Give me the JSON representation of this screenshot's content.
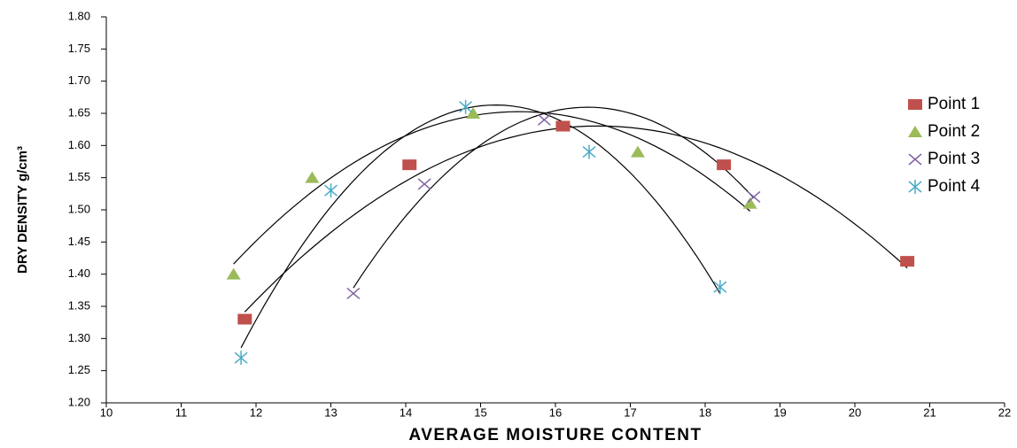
{
  "chart_data": {
    "type": "scatter",
    "trendline": "polynomial",
    "legend": "right",
    "xlabel": "AVERAGE MOISTURE CONTENT",
    "ylabel": "DRY DENSITY g/cm³",
    "xlim": [
      10,
      22
    ],
    "xticks": [
      10,
      11,
      12,
      13,
      14,
      15,
      16,
      17,
      18,
      19,
      20,
      21,
      22
    ],
    "ylim": [
      1.2,
      1.8
    ],
    "yticks": [
      {
        "value": 1.2,
        "label": "1.20"
      },
      1.25,
      {
        "value": 1.3,
        "label": "1.30"
      },
      1.35,
      {
        "value": 1.4,
        "label": "1.40"
      },
      1.45,
      {
        "value": 1.5,
        "label": "1.50"
      },
      1.55,
      {
        "value": 1.6,
        "label": "1.60"
      },
      1.65,
      {
        "value": 1.7,
        "label": "1.70"
      },
      1.75,
      {
        "value": 1.8,
        "label": "1.80"
      }
    ],
    "series": [
      {
        "name": "Point 1",
        "color": "#c0504d",
        "marker": "square",
        "x": [
          11.85,
          14.05,
          16.1,
          18.25,
          20.7
        ],
        "values": [
          1.33,
          1.57,
          1.63,
          1.57,
          1.42
        ]
      },
      {
        "name": "Point 2",
        "color": "#9bbb59",
        "marker": "triangle",
        "x": [
          11.7,
          12.75,
          14.9,
          17.1,
          18.6
        ],
        "values": [
          1.4,
          1.55,
          1.65,
          1.59,
          1.51
        ]
      },
      {
        "name": "Point 3",
        "color": "#8064a2",
        "marker": "cross",
        "x": [
          13.3,
          14.25,
          15.85,
          18.65
        ],
        "values": [
          1.37,
          1.54,
          1.64,
          1.52
        ]
      },
      {
        "name": "Point 4",
        "color": "#4bacc6",
        "marker": "star",
        "x": [
          11.8,
          13.0,
          14.8,
          16.45,
          18.2
        ],
        "values": [
          1.27,
          1.53,
          1.66,
          1.59,
          1.38
        ]
      }
    ]
  }
}
